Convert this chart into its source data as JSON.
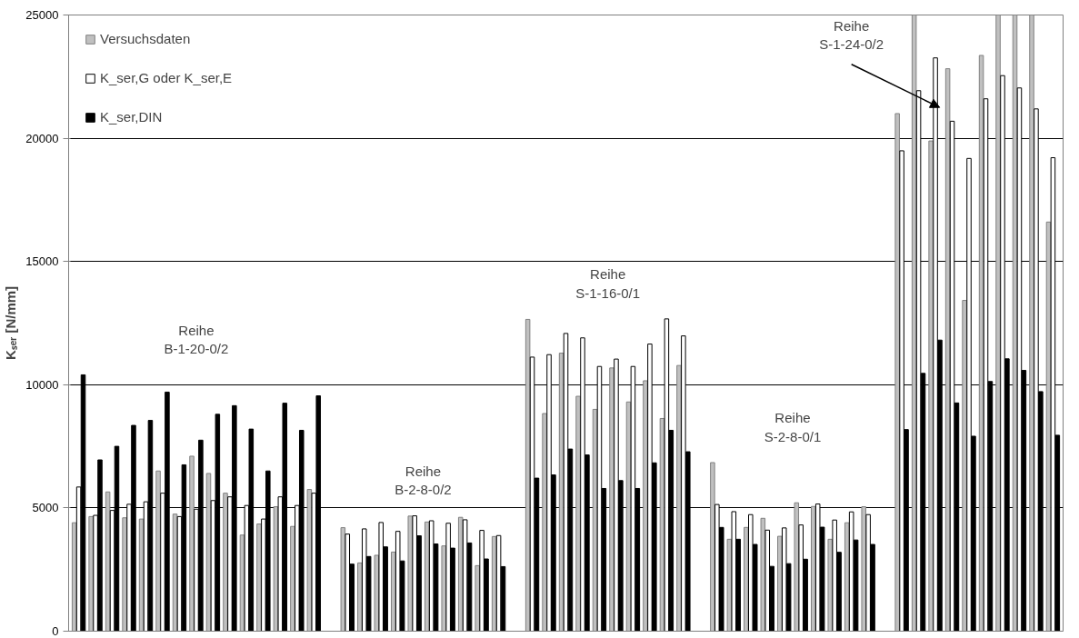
{
  "chart_data": {
    "type": "bar",
    "ylabel": "Kₛₑᵣ [N/mm]",
    "categories": [
      null,
      null,
      null,
      null,
      null,
      null,
      null,
      null,
      null,
      null,
      null,
      null,
      null,
      null,
      null,
      null,
      null,
      null,
      null,
      null,
      null,
      null,
      null,
      null,
      null,
      null,
      null,
      null,
      null,
      null,
      null,
      null,
      null,
      null,
      null,
      null,
      null,
      null,
      null,
      null,
      null,
      null,
      null,
      null,
      null,
      null,
      null,
      null,
      null,
      null,
      null,
      null,
      null,
      null,
      null,
      null,
      null,
      null,
      null
    ],
    "series": [
      {
        "name": "Versuchsdaten",
        "color": "#c0c0c0",
        "values": [
          4400,
          4650,
          5650,
          4600,
          4550,
          6500,
          4750,
          7100,
          6400,
          5600,
          3900,
          4350,
          5050,
          4250,
          5750,
          null,
          4200,
          2770,
          3080,
          3210,
          4670,
          4430,
          3460,
          4620,
          2660,
          3840,
          null,
          12650,
          8830,
          11280,
          9530,
          9000,
          10680,
          9300,
          10160,
          8630,
          10780,
          null,
          6840,
          3730,
          4210,
          4580,
          3850,
          5210,
          5060,
          3730,
          4400,
          5050,
          null,
          21000,
          25000,
          19890,
          22820,
          13420,
          23360,
          25000,
          25000,
          25000,
          16600
        ]
      },
      {
        "name": "K_ser,G oder K_ser,E",
        "color": "#ffffff",
        "values": [
          5850,
          4700,
          4900,
          5150,
          5250,
          5600,
          4650,
          4950,
          5300,
          5450,
          5100,
          4550,
          5450,
          5100,
          5600,
          null,
          3940,
          4150,
          4410,
          4050,
          4680,
          4480,
          4380,
          4520,
          4090,
          3880,
          null,
          11120,
          11220,
          12080,
          11900,
          10740,
          11040,
          10740,
          11650,
          12670,
          11980,
          null,
          5140,
          4850,
          4730,
          4100,
          4190,
          4310,
          5160,
          4510,
          4840,
          4730,
          null,
          19490,
          21930,
          23260,
          20690,
          19180,
          21600,
          22540,
          22040,
          21190,
          19210
        ]
      },
      {
        "name": "K_ser,DIN",
        "color": "#000000",
        "values": [
          10400,
          6950,
          7500,
          8350,
          8550,
          9700,
          6750,
          7750,
          8800,
          9150,
          8200,
          6500,
          9250,
          8150,
          9550,
          null,
          2720,
          3030,
          3420,
          2850,
          3870,
          3540,
          3370,
          3580,
          2930,
          2620,
          null,
          6210,
          6340,
          7390,
          7150,
          5790,
          6110,
          5790,
          6830,
          8150,
          7280,
          null,
          4210,
          3730,
          3520,
          2630,
          2740,
          2920,
          4220,
          3200,
          3700,
          3520,
          null,
          8180,
          10460,
          11810,
          9260,
          7910,
          10130,
          11050,
          10580,
          9720,
          7950
        ]
      }
    ],
    "ylim": [
      0,
      25000
    ],
    "yticks": [
      0,
      5000,
      10000,
      15000,
      20000,
      25000
    ],
    "grid": "y",
    "legend": "top left",
    "tick_labels": "y",
    "annotations": [
      "Reihe\nB-1-20-0/2",
      "Reihe\nB-2-8-0/2",
      "Reihe\nS-1-16-0/1",
      "Reihe\nS-2-8-0/1",
      "Reihe\nS-1-24-0/2"
    ]
  }
}
